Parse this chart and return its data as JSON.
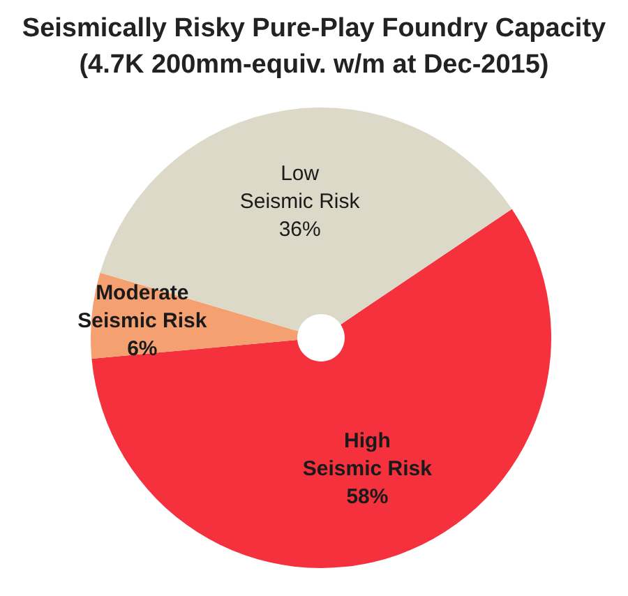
{
  "chart_data": {
    "type": "pie",
    "title": "Seismically Risky Pure-Play Foundry Capacity",
    "subtitle": "(4.7K 200mm-equiv. w/m at Dec-2015)",
    "categories": [
      "High Seismic Risk",
      "Moderate Seismic Risk",
      "Low Seismic Risk"
    ],
    "values": [
      58,
      6,
      36
    ],
    "colors": [
      "#f5313e",
      "#f4a070",
      "#dcd9c8"
    ],
    "value_labels": [
      "58%",
      "6%",
      "36%"
    ],
    "legend": false
  }
}
